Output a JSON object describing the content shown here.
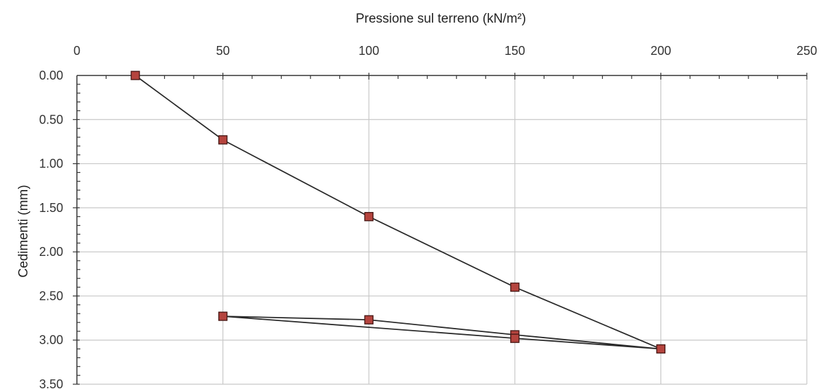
{
  "chart_data": {
    "type": "line",
    "title": "Pressione sul terreno (kN/m²)",
    "xlabel": "Pressione sul terreno (kN/m²)",
    "ylabel": "Cedimenti (mm)",
    "xlim": [
      0,
      250
    ],
    "ylim": [
      0,
      3.5
    ],
    "y_inverted": true,
    "x_axis_position": "top",
    "grid": true,
    "x_ticks": [
      "0",
      "50",
      "100",
      "150",
      "200",
      "250"
    ],
    "x_tick_values": [
      0,
      50,
      100,
      150,
      200,
      250
    ],
    "y_ticks": [
      "0.00",
      "0.50",
      "1.00",
      "1.50",
      "2.00",
      "2.50",
      "3.00",
      "3.50"
    ],
    "y_tick_values": [
      0,
      0.5,
      1.0,
      1.5,
      2.0,
      2.5,
      3.0,
      3.5
    ],
    "series": [
      {
        "x": [
          20,
          50,
          100,
          150,
          200,
          150,
          100,
          50,
          150,
          200
        ],
        "y": [
          0.0,
          0.73,
          1.6,
          2.4,
          3.1,
          2.94,
          2.77,
          2.73,
          2.98,
          3.1
        ],
        "marker": "square"
      }
    ],
    "colors": {
      "line": "#2b2b2b",
      "marker_fill": "#b5443e",
      "marker_stroke": "#4a1a17",
      "grid": "#c8c8c8",
      "axis": "#333333"
    }
  }
}
